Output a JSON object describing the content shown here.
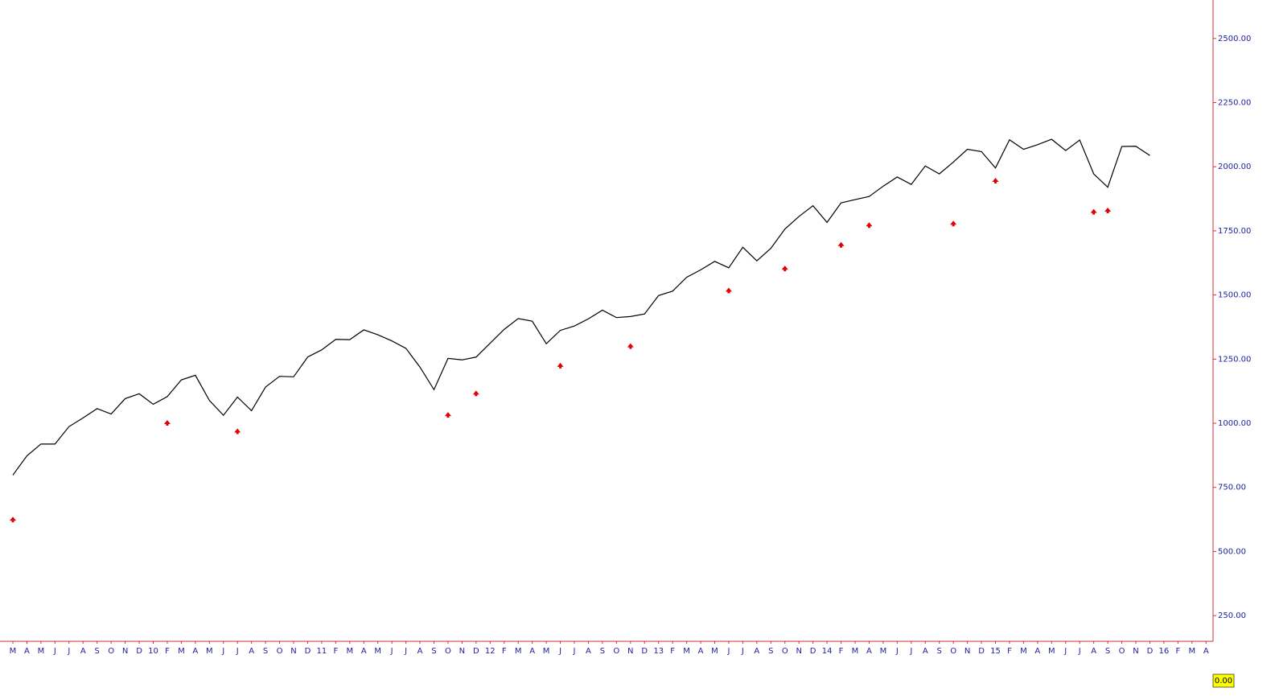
{
  "chart_data": {
    "type": "line",
    "categories": [
      "M",
      "A",
      "M",
      "J",
      "J",
      "A",
      "S",
      "O",
      "N",
      "D",
      "10",
      "F",
      "M",
      "A",
      "M",
      "J",
      "J",
      "A",
      "S",
      "O",
      "N",
      "D",
      "11",
      "F",
      "M",
      "A",
      "M",
      "J",
      "J",
      "A",
      "S",
      "O",
      "N",
      "D",
      "12",
      "F",
      "M",
      "A",
      "M",
      "J",
      "J",
      "A",
      "S",
      "O",
      "N",
      "D",
      "13",
      "F",
      "M",
      "A",
      "M",
      "J",
      "J",
      "A",
      "S",
      "O",
      "N",
      "D",
      "14",
      "F",
      "M",
      "A",
      "M",
      "J",
      "J",
      "A",
      "S",
      "O",
      "N",
      "D",
      "15",
      "F",
      "M",
      "A",
      "M",
      "J",
      "J",
      "A",
      "S",
      "O",
      "N",
      "D",
      "16",
      "F",
      "M",
      "A"
    ],
    "series": [
      {
        "color": "#000000",
        "style": "line",
        "values": [
          798,
          873,
          919,
          919,
          987,
          1021,
          1057,
          1036,
          1096,
          1115,
          1074,
          1104,
          1169,
          1187,
          1089,
          1031,
          1102,
          1049,
          1141,
          1183,
          1181,
          1258,
          1286,
          1327,
          1326,
          1364,
          1345,
          1321,
          1292,
          1219,
          1131,
          1253,
          1247,
          1258,
          1312,
          1366,
          1408,
          1398,
          1310,
          1362,
          1379,
          1407,
          1441,
          1412,
          1416,
          1426,
          1498,
          1515,
          1569,
          1598,
          1631,
          1606,
          1686,
          1633,
          1682,
          1757,
          1806,
          1848,
          1783,
          1859,
          1872,
          1884,
          1924,
          1960,
          1931,
          2003,
          1972,
          2018,
          2068,
          2059,
          1995,
          2105,
          2068,
          2086,
          2107,
          2063,
          2104,
          1972,
          1920,
          2079,
          2080,
          2044,
          null,
          null,
          null,
          null
        ]
      },
      {
        "color": "#e00000",
        "style": "arrow",
        "values": [
          667,
          null,
          null,
          null,
          null,
          null,
          null,
          null,
          null,
          null,
          null,
          1044,
          null,
          null,
          null,
          null,
          1011,
          null,
          null,
          null,
          null,
          null,
          null,
          null,
          null,
          null,
          null,
          null,
          null,
          null,
          null,
          1075,
          null,
          1159,
          null,
          null,
          null,
          null,
          null,
          1267,
          null,
          null,
          null,
          null,
          1343,
          null,
          null,
          null,
          null,
          null,
          null,
          1560,
          null,
          null,
          null,
          1646,
          null,
          null,
          null,
          1738,
          null,
          1815,
          null,
          null,
          null,
          null,
          null,
          1821,
          null,
          null,
          1988,
          null,
          null,
          null,
          null,
          null,
          null,
          1867,
          1872,
          null,
          null,
          null,
          null,
          null,
          null,
          null
        ]
      }
    ],
    "ylim": [
      150,
      2650
    ],
    "yticks": [
      {
        "value": 250,
        "label": "250.00"
      },
      {
        "value": 500,
        "label": "500.00"
      },
      {
        "value": 750,
        "label": "750.00"
      },
      {
        "value": 1000,
        "label": "1000.00"
      },
      {
        "value": 1250,
        "label": "1250.00"
      },
      {
        "value": 1500,
        "label": "1500.00"
      },
      {
        "value": 1750,
        "label": "1750.00"
      },
      {
        "value": 2000,
        "label": "2000.00"
      },
      {
        "value": 2250,
        "label": "2250.00"
      },
      {
        "value": 2500,
        "label": "2500.00"
      }
    ],
    "axis_color": "#d03030",
    "label_color": "#2020a0",
    "readout": "0.00"
  }
}
